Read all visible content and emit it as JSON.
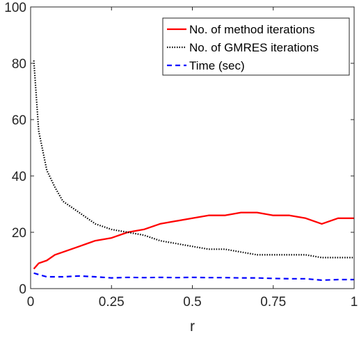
{
  "chart_data": {
    "type": "line",
    "title": "",
    "xlabel": "r",
    "ylabel": "",
    "xlim": [
      0,
      1
    ],
    "ylim": [
      0,
      100
    ],
    "xticks": [
      0,
      0.25,
      0.5,
      0.75,
      1
    ],
    "xtick_labels": [
      "0",
      "0.25",
      "0.5",
      "0.75",
      "1"
    ],
    "yticks": [
      0,
      20,
      40,
      60,
      80,
      100
    ],
    "ytick_labels": [
      "0",
      "20",
      "40",
      "60",
      "80",
      "100"
    ],
    "grid": false,
    "box": true,
    "legend": {
      "position": "top-right"
    },
    "series": [
      {
        "name": "No. of method iterations",
        "color": "#ff0000",
        "style": "solid",
        "x": [
          0.01,
          0.025,
          0.05,
          0.075,
          0.1,
          0.15,
          0.2,
          0.25,
          0.3,
          0.35,
          0.4,
          0.45,
          0.5,
          0.55,
          0.6,
          0.65,
          0.7,
          0.75,
          0.8,
          0.85,
          0.9,
          0.95,
          1.0
        ],
        "y": [
          7,
          9,
          10,
          12,
          13,
          15,
          17,
          18,
          20,
          21,
          23,
          24,
          25,
          26,
          26,
          27,
          27,
          26,
          26,
          25,
          23,
          25,
          25
        ]
      },
      {
        "name": "No. of GMRES iterations",
        "color": "#000000",
        "style": "dotted",
        "x": [
          0.01,
          0.025,
          0.05,
          0.075,
          0.1,
          0.15,
          0.2,
          0.25,
          0.3,
          0.35,
          0.4,
          0.45,
          0.5,
          0.55,
          0.6,
          0.65,
          0.7,
          0.75,
          0.8,
          0.85,
          0.9,
          0.95,
          1.0
        ],
        "y": [
          81,
          56,
          42,
          36,
          31,
          27,
          23,
          21,
          20,
          19,
          17,
          16,
          15,
          14,
          14,
          13,
          12,
          12,
          12,
          12,
          11,
          11,
          11
        ]
      },
      {
        "name": "Time (sec)",
        "color": "#0000ff",
        "style": "dashed",
        "x": [
          0.01,
          0.025,
          0.05,
          0.075,
          0.1,
          0.15,
          0.2,
          0.25,
          0.3,
          0.35,
          0.4,
          0.45,
          0.5,
          0.55,
          0.6,
          0.65,
          0.7,
          0.75,
          0.8,
          0.85,
          0.9,
          0.95,
          1.0
        ],
        "y": [
          5.5,
          5.0,
          4.2,
          4.2,
          4.2,
          4.5,
          4.2,
          3.8,
          4.0,
          3.9,
          4.0,
          3.9,
          4.0,
          3.9,
          3.9,
          3.8,
          3.8,
          3.6,
          3.5,
          3.5,
          3.0,
          3.2,
          3.2
        ]
      }
    ]
  }
}
